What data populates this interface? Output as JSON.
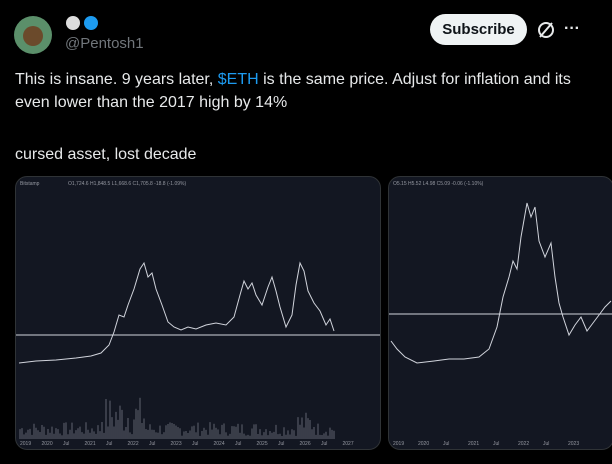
{
  "post": {
    "handle": "@Pentosh1",
    "subscribe": "Subscribe",
    "more": "···",
    "text_a": "This is insane. 9 years later, ",
    "cashtag": "$ETH",
    "text_b": " is the same price. Adjust for inflation and its even lower than the 2017 high by 14%",
    "text_c": "cursed asset, lost decade"
  },
  "images": [
    {
      "exchange": "Bitstamp",
      "ohlc": "O1,724.6 H1,848.5 L1,668.6 C1,705.8 -18.8 (-1.09%)",
      "xlabels": [
        "2019",
        "2020",
        "Jul",
        "2021",
        "Jul",
        "2022",
        "Jul",
        "2023",
        "Jul",
        "2024",
        "Jul",
        "2025",
        "Jul",
        "2026",
        "Jul",
        "2027"
      ]
    },
    {
      "ohlc": "O5.15 H5.52 L4.98 C5.09 -0.06 (-1.10%)",
      "xlabels": [
        "2019",
        "2020",
        "Jul",
        "2021",
        "Jul",
        "2022",
        "Jul",
        "2023"
      ]
    }
  ]
}
